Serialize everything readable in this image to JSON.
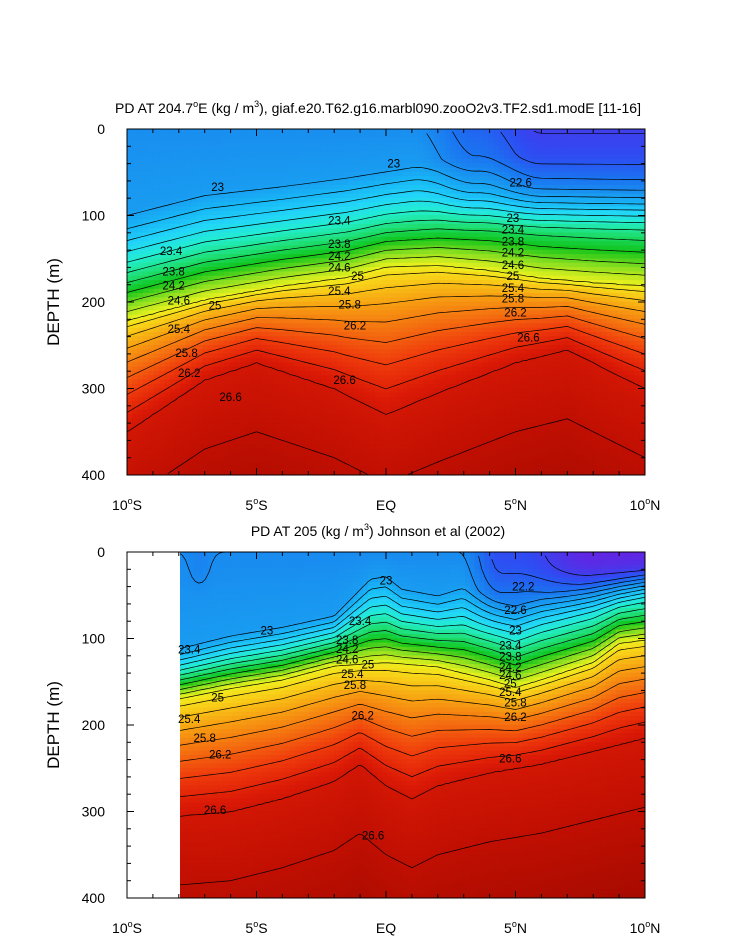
{
  "chart_data": [
    {
      "type": "contour",
      "title": "PD AT 204.7°E (kg / m³), giaf.e20.T62.g16.marbl090.zooO2v3.TF2.sd1.modE [11-16]",
      "title_parts": {
        "pre": "PD AT 204.7",
        "deg": "o",
        "mid": "E (kg / m",
        "sup": "3",
        "post": "), giaf.e20.T62.g16.marbl090.zooO2v3.TF2.sd1.modE [11-16]"
      },
      "ylabel": "DEPTH (m)",
      "xlabel": "",
      "xlim": [
        -10,
        10
      ],
      "ylim": [
        400,
        0
      ],
      "x_ticks": [
        {
          "value": -10,
          "num": "10",
          "hemi": "S"
        },
        {
          "value": -5,
          "num": "5",
          "hemi": "S"
        },
        {
          "value": 0,
          "num": "EQ",
          "hemi": ""
        },
        {
          "value": 5,
          "num": "5",
          "hemi": "N"
        },
        {
          "value": 10,
          "num": "10",
          "hemi": "N"
        }
      ],
      "y_ticks": [
        0,
        100,
        200,
        300,
        400
      ],
      "data_x_range": [
        -10,
        10
      ],
      "contour_levels": [
        22.2,
        22.4,
        22.6,
        22.8,
        23.0,
        23.2,
        23.4,
        23.6,
        23.8,
        24.0,
        24.2,
        24.4,
        24.6,
        24.8,
        25.0,
        25.2,
        25.4,
        25.6,
        25.8,
        26.0,
        26.2,
        26.4,
        26.6,
        26.8
      ],
      "contour_labels": [
        {
          "text": "23",
          "x": 0.3,
          "d": 40
        },
        {
          "text": "23",
          "x": -6.5,
          "d": 67
        },
        {
          "text": "22.6",
          "x": 5.2,
          "d": 62
        },
        {
          "text": "23",
          "x": 4.9,
          "d": 103
        },
        {
          "text": "23.4",
          "x": -1.8,
          "d": 106
        },
        {
          "text": "23.4",
          "x": -8.3,
          "d": 141
        },
        {
          "text": "23.4",
          "x": 4.9,
          "d": 116
        },
        {
          "text": "23.8",
          "x": -1.8,
          "d": 133
        },
        {
          "text": "23.8",
          "x": 4.9,
          "d": 130
        },
        {
          "text": "23.8",
          "x": -8.2,
          "d": 165
        },
        {
          "text": "24.2",
          "x": -1.8,
          "d": 147
        },
        {
          "text": "24.2",
          "x": 4.9,
          "d": 143
        },
        {
          "text": "24.2",
          "x": -8.2,
          "d": 181
        },
        {
          "text": "24.6",
          "x": -1.8,
          "d": 160
        },
        {
          "text": "24.6",
          "x": 4.9,
          "d": 157
        },
        {
          "text": "24.6",
          "x": -8.0,
          "d": 198
        },
        {
          "text": "25",
          "x": -1.1,
          "d": 170
        },
        {
          "text": "25",
          "x": 4.9,
          "d": 170
        },
        {
          "text": "25",
          "x": -6.6,
          "d": 204
        },
        {
          "text": "25.4",
          "x": -1.8,
          "d": 187
        },
        {
          "text": "25.4",
          "x": 4.9,
          "d": 184
        },
        {
          "text": "25.4",
          "x": -8.0,
          "d": 231
        },
        {
          "text": "25.8",
          "x": -1.4,
          "d": 203
        },
        {
          "text": "25.8",
          "x": 4.9,
          "d": 196
        },
        {
          "text": "25.8",
          "x": -7.7,
          "d": 259
        },
        {
          "text": "26.2",
          "x": -1.2,
          "d": 227
        },
        {
          "text": "26.2",
          "x": 5.0,
          "d": 212
        },
        {
          "text": "26.2",
          "x": -7.6,
          "d": 282
        },
        {
          "text": "26.6",
          "x": -1.6,
          "d": 290
        },
        {
          "text": "26.6",
          "x": 5.5,
          "d": 241
        },
        {
          "text": "26.6",
          "x": -6.0,
          "d": 310
        }
      ]
    },
    {
      "type": "contour",
      "title": "PD AT 205 (kg / m³) Johnson et al (2002)",
      "title_parts": {
        "pre": "PD AT 205 (kg / m",
        "deg": "",
        "mid": "",
        "sup": "3",
        "post": ") Johnson et al (2002)"
      },
      "ylabel": "DEPTH (m)",
      "xlabel": "",
      "xlim": [
        -10,
        10
      ],
      "ylim": [
        400,
        0
      ],
      "x_ticks": [
        {
          "value": -10,
          "num": "10",
          "hemi": "S"
        },
        {
          "value": -5,
          "num": "5",
          "hemi": "S"
        },
        {
          "value": 0,
          "num": "EQ",
          "hemi": ""
        },
        {
          "value": 5,
          "num": "5",
          "hemi": "N"
        },
        {
          "value": 10,
          "num": "10",
          "hemi": "N"
        }
      ],
      "y_ticks": [
        0,
        100,
        200,
        300,
        400
      ],
      "data_x_range": [
        -8,
        10
      ],
      "contour_levels": [
        22.2,
        22.4,
        22.6,
        22.8,
        23.0,
        23.2,
        23.4,
        23.6,
        23.8,
        24.0,
        24.2,
        24.4,
        24.6,
        24.8,
        25.0,
        25.2,
        25.4,
        25.6,
        25.8,
        26.0,
        26.2,
        26.4,
        26.6,
        26.8
      ],
      "contour_labels": [
        {
          "text": "23",
          "x": 0.0,
          "d": 33
        },
        {
          "text": "22.2",
          "x": 5.3,
          "d": 40
        },
        {
          "text": "22.6",
          "x": 5.0,
          "d": 67
        },
        {
          "text": "23",
          "x": -4.6,
          "d": 91
        },
        {
          "text": "23",
          "x": 5.0,
          "d": 91
        },
        {
          "text": "23.4",
          "x": -1.0,
          "d": 80
        },
        {
          "text": "23.4",
          "x": -7.6,
          "d": 113
        },
        {
          "text": "23.4",
          "x": 4.8,
          "d": 108
        },
        {
          "text": "23.8",
          "x": -1.5,
          "d": 102
        },
        {
          "text": "23.8",
          "x": 4.8,
          "d": 121
        },
        {
          "text": "24.2",
          "x": -1.5,
          "d": 112
        },
        {
          "text": "24.2",
          "x": 4.8,
          "d": 133
        },
        {
          "text": "24.6",
          "x": -1.5,
          "d": 124
        },
        {
          "text": "24.6",
          "x": 4.8,
          "d": 142
        },
        {
          "text": "25",
          "x": -0.7,
          "d": 130
        },
        {
          "text": "25",
          "x": 4.8,
          "d": 152
        },
        {
          "text": "25",
          "x": -6.5,
          "d": 168
        },
        {
          "text": "25.4",
          "x": -1.3,
          "d": 141
        },
        {
          "text": "25.4",
          "x": 4.8,
          "d": 162
        },
        {
          "text": "25.4",
          "x": -7.6,
          "d": 193
        },
        {
          "text": "25.8",
          "x": -1.2,
          "d": 154
        },
        {
          "text": "25.8",
          "x": 5.0,
          "d": 174
        },
        {
          "text": "25.8",
          "x": -7.0,
          "d": 215
        },
        {
          "text": "26.2",
          "x": -0.9,
          "d": 189
        },
        {
          "text": "26.2",
          "x": 5.0,
          "d": 191
        },
        {
          "text": "26.2",
          "x": -6.4,
          "d": 234
        },
        {
          "text": "26.6",
          "x": 4.8,
          "d": 239
        },
        {
          "text": "26.6",
          "x": -6.6,
          "d": 298
        },
        {
          "text": "26.6",
          "x": -0.5,
          "d": 328
        }
      ]
    }
  ]
}
